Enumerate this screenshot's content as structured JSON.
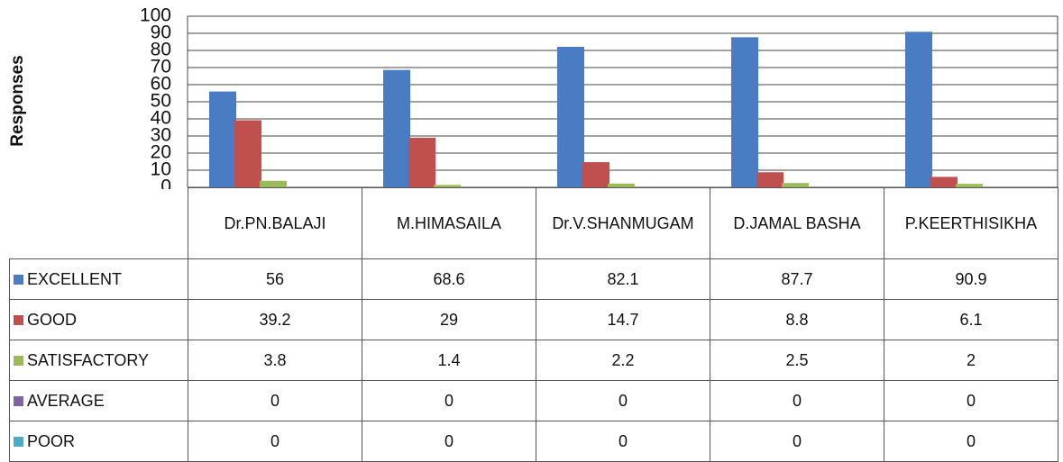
{
  "chart_data": {
    "type": "bar",
    "y_label": "Responses",
    "categories": [
      "Dr.PN.BALAJI",
      "M.HIMASAILA",
      "Dr.V.SHANMUGAM",
      "D.JAMAL BASHA",
      "P.KEERTHISIKHA"
    ],
    "series": [
      {
        "name": "EXCELLENT",
        "color": "#4a7cc4",
        "values": [
          56,
          68.6,
          82.1,
          87.7,
          90.9
        ]
      },
      {
        "name": "GOOD",
        "color": "#c0504d",
        "values": [
          39.2,
          29,
          14.7,
          8.8,
          6.1
        ]
      },
      {
        "name": "SATISFACTORY",
        "color": "#9bbb59",
        "values": [
          3.8,
          1.4,
          2.2,
          2.5,
          2
        ]
      },
      {
        "name": "AVERAGE",
        "color": "#8064a2",
        "values": [
          0,
          0,
          0,
          0,
          0
        ]
      },
      {
        "name": "POOR",
        "color": "#4bacc6",
        "values": [
          0,
          0,
          0,
          0,
          0
        ]
      }
    ],
    "ylim": [
      0,
      100
    ],
    "yticks": [
      0,
      10,
      20,
      30,
      40,
      50,
      60,
      70,
      80,
      90,
      100
    ],
    "grid": true
  }
}
